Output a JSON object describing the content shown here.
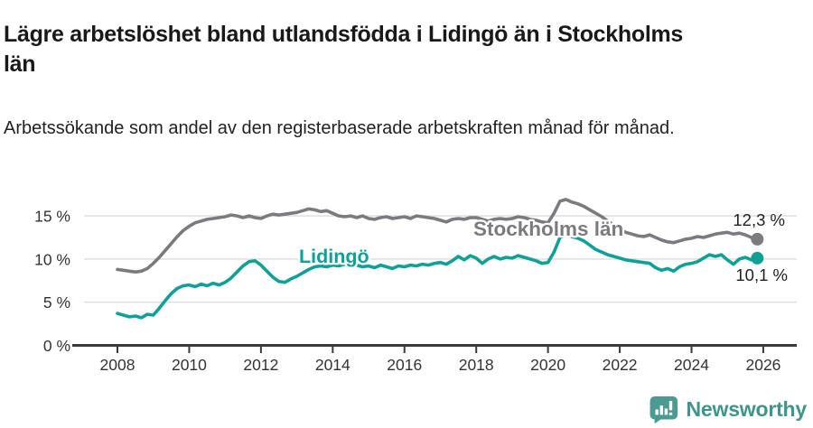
{
  "header": {
    "title": "Lägre arbetslöshet bland utlandsfödda i Lidingö än i Stockholms län",
    "subtitle": "Arbetssökande som andel av den registerbaserade arbetskraften månad för månad."
  },
  "chart_data": {
    "type": "line",
    "title": "Lägre arbetslöshet bland utlandsfödda i Lidingö än i Stockholms län",
    "subtitle": "Arbetssökande som andel av den registerbaserade arbetskraften månad för månad.",
    "unit": "%",
    "grid": true,
    "legend": "inline-labels",
    "x_start": 2008.0,
    "points_per_year": 6,
    "xlim": [
      2008,
      2026
    ],
    "ylim": [
      0,
      17.5
    ],
    "x_ticks": [
      2008,
      2010,
      2012,
      2014,
      2016,
      2018,
      2020,
      2022,
      2024,
      2026
    ],
    "y_ticks": [
      0,
      5,
      10,
      15
    ],
    "y_tick_labels": [
      "0 %",
      "5 %",
      "10 %",
      "15 %"
    ],
    "series": [
      {
        "name": "Stockholms län",
        "color": "#7c7a7e",
        "end_value": 12.3,
        "end_value_label": "12,3 %",
        "values": [
          8.8,
          8.7,
          8.6,
          8.5,
          8.6,
          8.9,
          9.5,
          10.2,
          11.0,
          11.8,
          12.6,
          13.3,
          13.8,
          14.2,
          14.4,
          14.6,
          14.7,
          14.8,
          14.9,
          15.1,
          15.0,
          14.8,
          15.0,
          14.8,
          14.7,
          15.0,
          15.2,
          15.1,
          15.2,
          15.3,
          15.4,
          15.6,
          15.8,
          15.7,
          15.5,
          15.6,
          15.3,
          15.0,
          14.9,
          15.0,
          14.8,
          15.0,
          14.7,
          14.6,
          14.8,
          14.9,
          14.7,
          14.8,
          14.9,
          14.7,
          15.0,
          14.9,
          14.8,
          14.7,
          14.5,
          14.3,
          14.6,
          14.7,
          14.6,
          14.8,
          14.8,
          14.6,
          14.4,
          14.6,
          14.7,
          14.6,
          14.7,
          14.9,
          14.8,
          14.6,
          14.5,
          14.3,
          14.2,
          15.3,
          16.7,
          16.9,
          16.6,
          16.4,
          16.1,
          15.7,
          15.3,
          14.9,
          14.4,
          13.9,
          13.4,
          13.1,
          12.9,
          12.7,
          12.6,
          12.8,
          12.5,
          12.2,
          12.0,
          11.9,
          12.1,
          12.3,
          12.4,
          12.6,
          12.5,
          12.7,
          12.9,
          13.0,
          13.1,
          12.9,
          13.0,
          12.8,
          12.5,
          12.3
        ]
      },
      {
        "name": "Lidingö",
        "color": "#10a096",
        "end_value": 10.1,
        "end_value_label": "10,1 %",
        "values": [
          3.7,
          3.5,
          3.3,
          3.4,
          3.2,
          3.6,
          3.5,
          4.3,
          5.2,
          6.0,
          6.6,
          6.9,
          7.0,
          6.8,
          7.1,
          6.9,
          7.2,
          7.0,
          7.3,
          7.8,
          8.5,
          9.2,
          9.7,
          9.8,
          9.3,
          8.6,
          7.9,
          7.4,
          7.3,
          7.7,
          8.0,
          8.4,
          8.8,
          9.1,
          9.2,
          9.1,
          9.3,
          9.2,
          9.4,
          9.2,
          9.3,
          9.1,
          9.2,
          9.0,
          9.3,
          9.1,
          8.9,
          9.2,
          9.1,
          9.3,
          9.2,
          9.4,
          9.3,
          9.5,
          9.6,
          9.4,
          9.8,
          10.3,
          9.9,
          10.4,
          10.1,
          9.5,
          10.0,
          10.3,
          10.0,
          10.2,
          10.1,
          10.4,
          10.2,
          10.0,
          9.8,
          9.5,
          9.6,
          10.8,
          12.5,
          12.8,
          12.6,
          12.4,
          12.1,
          11.6,
          11.1,
          10.8,
          10.5,
          10.3,
          10.1,
          9.9,
          9.8,
          9.7,
          9.6,
          9.5,
          9.0,
          8.7,
          8.9,
          8.6,
          9.1,
          9.4,
          9.5,
          9.7,
          10.1,
          10.5,
          10.3,
          10.5,
          9.9,
          9.4,
          10.0,
          10.2,
          9.9,
          10.1
        ]
      }
    ],
    "colors": {
      "grid": "#dcdcdc",
      "axis": "#3a3a3a",
      "tick_text": "#333333",
      "end_label_text": "#222222"
    }
  },
  "footer": {
    "brand": "Newsworthy",
    "logo_icon": "newsworthy-chart-bubble-icon",
    "brand_color": "#3f948b",
    "icon_color": "#4c9b93"
  }
}
